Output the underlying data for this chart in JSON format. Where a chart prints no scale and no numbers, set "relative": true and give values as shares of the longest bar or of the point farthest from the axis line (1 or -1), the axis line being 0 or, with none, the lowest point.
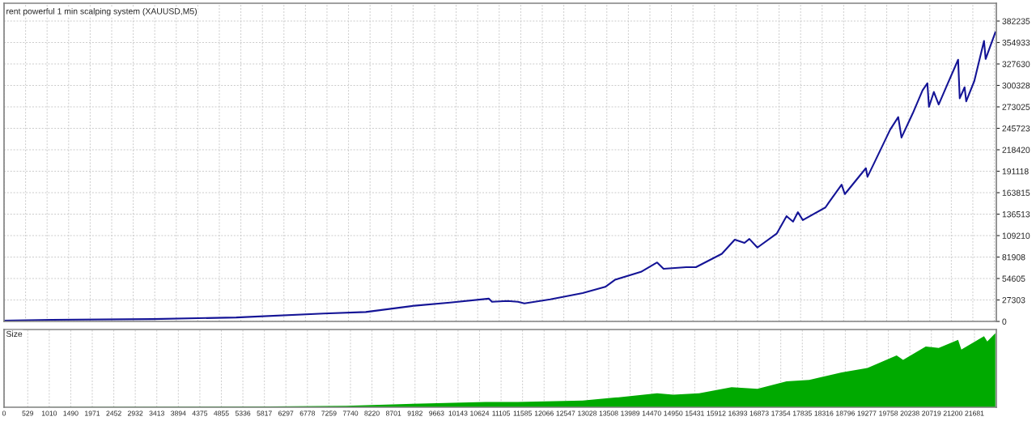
{
  "chart_data": [
    {
      "type": "line",
      "title": "rent powerful 1 min scalping system (XAUUSD,M5)",
      "xlim": [
        0,
        22170
      ],
      "ylim": [
        0,
        404900
      ],
      "yticks": [
        0,
        27303,
        54605,
        81908,
        109210,
        136513,
        163815,
        191118,
        218420,
        245723,
        273025,
        300328,
        327630,
        354933,
        382235
      ],
      "grid": true,
      "tick_labels": "y",
      "series": [
        {
          "color": "#141496",
          "x": [
            0,
            1067,
            3309,
            5189,
            7142,
            8082,
            9167,
            9962,
            10830,
            10902,
            11246,
            11481,
            11625,
            12204,
            12927,
            13433,
            13650,
            14229,
            14591,
            14735,
            15241,
            15458,
            16037,
            16326,
            16543,
            16652,
            16832,
            17266,
            17483,
            17628,
            17737,
            17845,
            18351,
            18424,
            18713,
            18785,
            19255,
            19291,
            19436,
            19798,
            19978,
            20051,
            20304,
            20521,
            20629,
            20665,
            20774,
            20882,
            21063,
            21316,
            21352,
            21461,
            21497,
            21678,
            21895,
            21931,
            22148
          ],
          "values": [
            1000,
            2000,
            3000,
            5000,
            10000,
            12000,
            20000,
            24000,
            29000,
            25000,
            26000,
            25000,
            23000,
            28000,
            36000,
            44000,
            53000,
            63000,
            75000,
            67000,
            69000,
            69000,
            86000,
            104000,
            100000,
            105000,
            94000,
            112000,
            134000,
            127000,
            139000,
            129000,
            145000,
            151000,
            174000,
            162000,
            195000,
            184000,
            201000,
            244000,
            260000,
            234000,
            265000,
            294000,
            303000,
            273000,
            292000,
            276000,
            300000,
            333000,
            284000,
            298000,
            280000,
            306000,
            357000,
            334000,
            368000
          ]
        }
      ]
    },
    {
      "type": "area",
      "title": "Size",
      "relative": true,
      "color": "#00aa00",
      "xlim": [
        0,
        22170
      ],
      "grid": "x",
      "tick_labels": "x",
      "xticks": [
        0,
        529,
        1010,
        1490,
        1971,
        2452,
        2932,
        3413,
        3894,
        4375,
        4855,
        5336,
        5817,
        6297,
        6778,
        7259,
        7740,
        8220,
        8701,
        9182,
        9663,
        10143,
        10624,
        11105,
        11585,
        12066,
        12547,
        13028,
        13508,
        13989,
        14470,
        14950,
        15431,
        15912,
        16393,
        16873,
        17354,
        17835,
        18316,
        18796,
        19277,
        19758,
        20238,
        20719,
        21200,
        21681
      ],
      "x": [
        0,
        5912,
        7648,
        9311,
        10758,
        11481,
        12927,
        13650,
        14591,
        14952,
        15531,
        16254,
        16832,
        17483,
        17990,
        18713,
        19291,
        19942,
        20087,
        20593,
        20882,
        21316,
        21388,
        21895,
        21967,
        22148
      ],
      "values": [
        0,
        0.01,
        0.02,
        0.05,
        0.07,
        0.07,
        0.09,
        0.13,
        0.19,
        0.17,
        0.19,
        0.27,
        0.25,
        0.35,
        0.37,
        0.47,
        0.53,
        0.7,
        0.64,
        0.82,
        0.8,
        0.91,
        0.78,
        0.96,
        0.89,
        1
      ]
    }
  ]
}
